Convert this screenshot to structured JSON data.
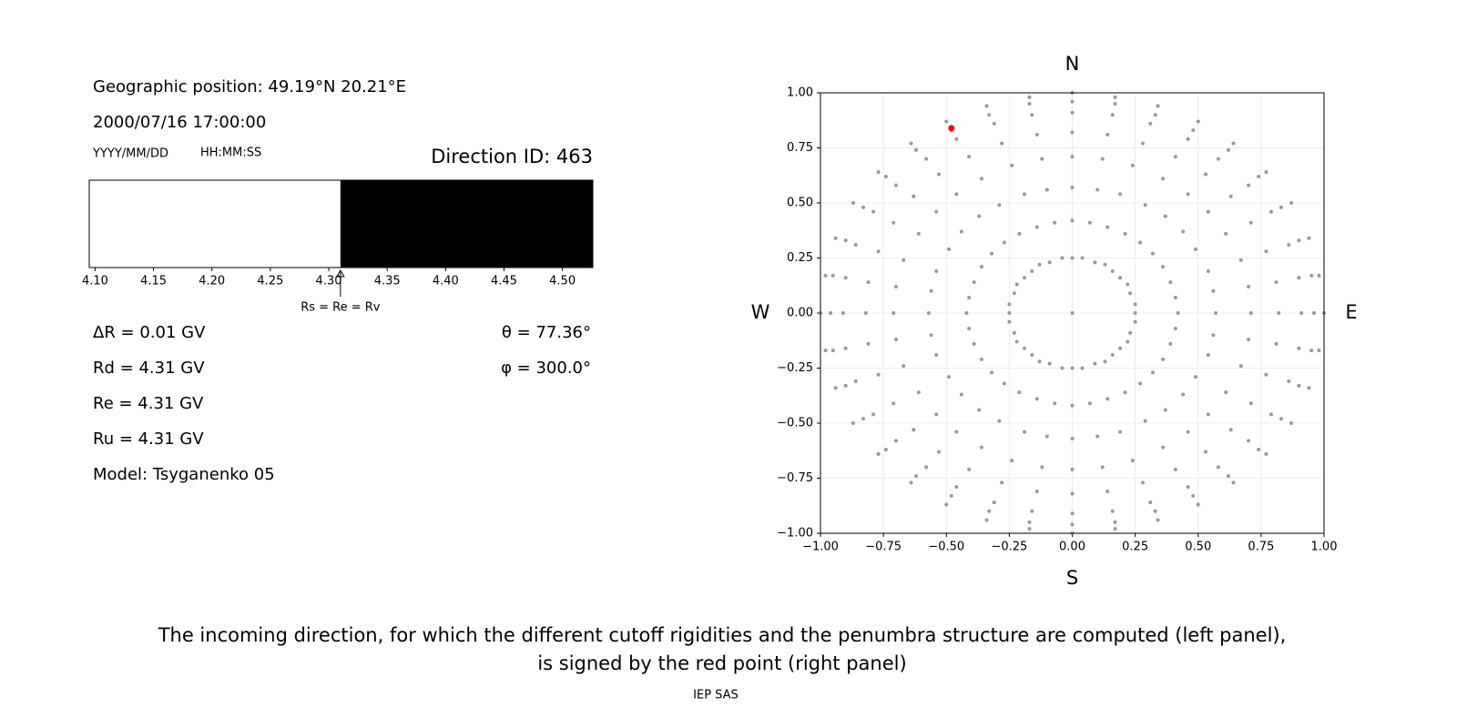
{
  "info": {
    "position": "Geographic position: 49.19°N 20.21°E",
    "datetime": "2000/07/16 17:00:00",
    "date_format": "YYYY/MM/DD",
    "time_format": "HH:MM:SS",
    "direction": "Direction ID: 463",
    "delta_r": "ΔR = 0.01 GV",
    "rd": "Rd = 4.31 GV",
    "re": "Re = 4.31 GV",
    "ru": "Ru = 4.31 GV",
    "model": "Model: Tsyganenko 05",
    "theta": "θ = 77.36°",
    "phi": "φ = 300.0°"
  },
  "caption": {
    "line1": "The incoming direction, for which the different cutoff rigidities and the penumbra structure are computed (left panel),",
    "line2": "is signed by the red point (right panel)",
    "credit": "IEP SAS"
  },
  "chart_data": [
    {
      "type": "penumbra",
      "xlim": [
        4.095,
        4.526
      ],
      "boundary": 4.31,
      "allowed_color": "#000000",
      "forbidden_color": "#ffffff",
      "marker_label": "Rs = Re = Rv",
      "xticks": [
        {
          "value": 4.1,
          "label": "4.10"
        },
        {
          "value": 4.15,
          "label": "4.15"
        },
        {
          "value": 4.2,
          "label": "4.20"
        },
        {
          "value": 4.25,
          "label": "4.25"
        },
        {
          "value": 4.3,
          "label": "4.30"
        },
        {
          "value": 4.35,
          "label": "4.35"
        },
        {
          "value": 4.4,
          "label": "4.40"
        },
        {
          "value": 4.45,
          "label": "4.45"
        },
        {
          "value": 4.5,
          "label": "4.50"
        }
      ]
    },
    {
      "type": "scatter",
      "color": "#999999",
      "grid": true,
      "labels": {
        "north": "N",
        "south": "S",
        "west": "W",
        "east": "E"
      },
      "xlim": [
        -1,
        1
      ],
      "ylim": [
        -1,
        1
      ],
      "xticks": [
        {
          "value": -1,
          "label": "−1.00"
        },
        {
          "value": -0.75,
          "label": "−0.75"
        },
        {
          "value": -0.5,
          "label": "−0.50"
        },
        {
          "value": -0.25,
          "label": "−0.25"
        },
        {
          "value": 0,
          "label": "0.00"
        },
        {
          "value": 0.25,
          "label": "0.25"
        },
        {
          "value": 0.5,
          "label": "0.50"
        },
        {
          "value": 0.75,
          "label": "0.75"
        },
        {
          "value": 1,
          "label": "1.00"
        }
      ],
      "yticks": [
        {
          "value": -1,
          "label": "−1.00"
        },
        {
          "value": -0.75,
          "label": "−0.75"
        },
        {
          "value": -0.5,
          "label": "−0.50"
        },
        {
          "value": -0.25,
          "label": "−0.25"
        },
        {
          "value": 0,
          "label": "0.00"
        },
        {
          "value": 0.25,
          "label": "0.25"
        },
        {
          "value": 0.5,
          "label": "0.50"
        },
        {
          "value": 0.75,
          "label": "0.75"
        },
        {
          "value": 1,
          "label": "1.00"
        }
      ],
      "highlight": {
        "x": -0.48,
        "y": 0.84,
        "color": "#ff0000"
      },
      "x": [
        0,
        0,
        0.04,
        0.09,
        0.13,
        0.16,
        0.19,
        0.22,
        0.23,
        0.25,
        0.25,
        0.25,
        0.23,
        0.22,
        0.19,
        0.16,
        0.13,
        0.09,
        0.04,
        0,
        -0.04,
        -0.09,
        -0.13,
        -0.16,
        -0.19,
        -0.22,
        -0.23,
        -0.25,
        -0.25,
        -0.25,
        -0.23,
        -0.22,
        -0.19,
        -0.16,
        -0.13,
        -0.09,
        -0.04,
        0,
        0.07,
        0.14,
        0.21,
        0.27,
        0.32,
        0.36,
        0.39,
        0.41,
        0.42,
        0.41,
        0.39,
        0.36,
        0.32,
        0.27,
        0.21,
        0.14,
        0.07,
        0,
        -0.07,
        -0.14,
        -0.21,
        -0.27,
        -0.32,
        -0.36,
        -0.39,
        -0.41,
        -0.42,
        -0.41,
        -0.39,
        -0.36,
        -0.32,
        -0.27,
        -0.21,
        -0.14,
        -0.07,
        0,
        0.1,
        0.19,
        0.29,
        0.37,
        0.44,
        0.49,
        0.54,
        0.56,
        0.57,
        0.56,
        0.54,
        0.49,
        0.44,
        0.37,
        0.29,
        0.19,
        0.1,
        0,
        -0.1,
        -0.19,
        -0.29,
        -0.37,
        -0.44,
        -0.49,
        -0.54,
        -0.56,
        -0.57,
        -0.56,
        -0.54,
        -0.49,
        -0.44,
        -0.37,
        -0.29,
        -0.19,
        -0.1,
        0,
        0.12,
        0.24,
        0.36,
        0.46,
        0.54,
        0.61,
        0.67,
        0.7,
        0.71,
        0.7,
        0.67,
        0.61,
        0.54,
        0.46,
        0.36,
        0.24,
        0.12,
        0,
        -0.12,
        -0.24,
        -0.36,
        -0.46,
        -0.54,
        -0.61,
        -0.67,
        -0.7,
        -0.71,
        -0.7,
        -0.67,
        -0.61,
        -0.54,
        -0.46,
        -0.36,
        -0.24,
        -0.12,
        0,
        0.14,
        0.28,
        0.41,
        0.53,
        0.63,
        0.71,
        0.77,
        0.81,
        0.82,
        0.81,
        0.77,
        0.71,
        0.63,
        0.53,
        0.41,
        0.28,
        0.14,
        0,
        -0.14,
        -0.28,
        -0.41,
        -0.53,
        -0.63,
        -0.71,
        -0.77,
        -0.81,
        -0.82,
        -0.81,
        -0.77,
        -0.71,
        -0.63,
        -0.53,
        -0.41,
        -0.28,
        -0.14,
        0,
        0.16,
        0.31,
        0.46,
        0.58,
        0.7,
        0.79,
        0.86,
        0.9,
        0.91,
        0.9,
        0.86,
        0.79,
        0.7,
        0.58,
        0.46,
        0.31,
        0.16,
        0,
        -0.16,
        -0.31,
        -0.46,
        -0.58,
        -0.7,
        -0.79,
        -0.86,
        -0.9,
        -0.91,
        -0.9,
        -0.86,
        -0.79,
        -0.7,
        -0.58,
        -0.46,
        -0.31,
        -0.16,
        0,
        0.17,
        0.33,
        0.48,
        0.62,
        0.74,
        0.83,
        0.9,
        0.95,
        0.96,
        0.95,
        0.9,
        0.83,
        0.74,
        0.62,
        0.48,
        0.33,
        0.17,
        0,
        -0.17,
        -0.33,
        -0.48,
        -0.62,
        -0.74,
        -0.83,
        -0.9,
        -0.95,
        -0.96,
        -0.95,
        -0.9,
        -0.83,
        -0.74,
        -0.62,
        -0.48,
        -0.33,
        -0.17,
        0,
        0.17,
        0.34,
        0.5,
        0.64,
        0.77,
        0.87,
        0.94,
        0.98,
        1,
        0.98,
        0.94,
        0.87,
        0.77,
        0.64,
        0.5,
        0.34,
        0.17,
        0,
        -0.17,
        -0.34,
        -0.5,
        -0.64,
        -0.77,
        -0.87,
        -0.94,
        -0.98,
        -1,
        -0.98,
        -0.94,
        -0.87,
        -0.77,
        -0.64,
        -0.5,
        -0.34,
        -0.17
      ],
      "values": [
        0,
        0.25,
        0.25,
        0.23,
        0.22,
        0.19,
        0.16,
        0.13,
        0.09,
        0.04,
        0,
        -0.04,
        -0.09,
        -0.13,
        -0.16,
        -0.19,
        -0.22,
        -0.23,
        -0.25,
        -0.25,
        -0.25,
        -0.23,
        -0.22,
        -0.19,
        -0.16,
        -0.13,
        -0.09,
        -0.04,
        0,
        0.04,
        0.09,
        0.13,
        0.16,
        0.19,
        0.22,
        0.23,
        0.25,
        0.42,
        0.41,
        0.39,
        0.36,
        0.32,
        0.27,
        0.21,
        0.14,
        0.07,
        0,
        -0.07,
        -0.14,
        -0.21,
        -0.27,
        -0.32,
        -0.36,
        -0.39,
        -0.41,
        -0.42,
        -0.41,
        -0.39,
        -0.36,
        -0.32,
        -0.27,
        -0.21,
        -0.14,
        -0.07,
        0,
        0.07,
        0.14,
        0.21,
        0.27,
        0.32,
        0.36,
        0.39,
        0.41,
        0.57,
        0.56,
        0.54,
        0.49,
        0.44,
        0.37,
        0.29,
        0.19,
        0.1,
        0,
        -0.1,
        -0.19,
        -0.29,
        -0.37,
        -0.44,
        -0.49,
        -0.54,
        -0.56,
        -0.57,
        -0.56,
        -0.54,
        -0.49,
        -0.44,
        -0.37,
        -0.29,
        -0.19,
        -0.1,
        0,
        0.1,
        0.19,
        0.29,
        0.37,
        0.44,
        0.49,
        0.54,
        0.56,
        0.71,
        0.7,
        0.67,
        0.61,
        0.54,
        0.46,
        0.36,
        0.24,
        0.12,
        0,
        -0.12,
        -0.24,
        -0.36,
        -0.46,
        -0.54,
        -0.61,
        -0.67,
        -0.7,
        -0.71,
        -0.7,
        -0.67,
        -0.61,
        -0.54,
        -0.46,
        -0.36,
        -0.24,
        -0.12,
        0,
        0.12,
        0.24,
        0.36,
        0.46,
        0.54,
        0.61,
        0.67,
        0.7,
        0.82,
        0.81,
        0.77,
        0.71,
        0.63,
        0.53,
        0.41,
        0.28,
        0.14,
        0,
        -0.14,
        -0.28,
        -0.41,
        -0.53,
        -0.63,
        -0.71,
        -0.77,
        -0.81,
        -0.82,
        -0.81,
        -0.77,
        -0.71,
        -0.63,
        -0.53,
        -0.41,
        -0.28,
        -0.14,
        0,
        0.14,
        0.28,
        0.41,
        0.53,
        0.63,
        0.71,
        0.77,
        0.81,
        0.91,
        0.9,
        0.86,
        0.79,
        0.7,
        0.58,
        0.46,
        0.31,
        0.16,
        0,
        -0.16,
        -0.31,
        -0.46,
        -0.58,
        -0.7,
        -0.79,
        -0.86,
        -0.9,
        -0.91,
        -0.9,
        -0.86,
        -0.79,
        -0.7,
        -0.58,
        -0.46,
        -0.31,
        -0.16,
        0,
        0.16,
        0.31,
        0.46,
        0.58,
        0.7,
        0.79,
        0.86,
        0.9,
        0.96,
        0.95,
        0.9,
        0.83,
        0.74,
        0.62,
        0.48,
        0.33,
        0.17,
        0,
        -0.17,
        -0.33,
        -0.48,
        -0.62,
        -0.74,
        -0.83,
        -0.9,
        -0.95,
        -0.96,
        -0.95,
        -0.9,
        -0.83,
        -0.74,
        -0.62,
        -0.48,
        -0.33,
        -0.17,
        0,
        0.17,
        0.33,
        0.48,
        0.62,
        0.74,
        0.83,
        0.9,
        0.95,
        1,
        0.98,
        0.94,
        0.87,
        0.77,
        0.64,
        0.5,
        0.34,
        0.17,
        0,
        -0.17,
        -0.34,
        -0.5,
        -0.64,
        -0.77,
        -0.87,
        -0.94,
        -0.98,
        -1,
        -0.98,
        -0.94,
        -0.87,
        -0.77,
        -0.64,
        -0.5,
        -0.34,
        -0.17,
        0,
        0.17,
        0.34,
        0.5,
        0.64,
        0.77,
        0.87,
        0.94,
        0.98
      ]
    }
  ]
}
